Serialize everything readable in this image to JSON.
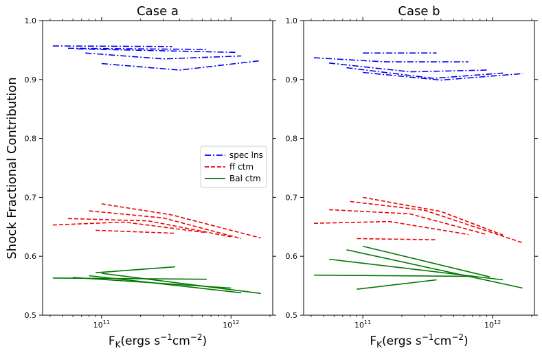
{
  "chart_data": {
    "type": "line",
    "ylabel": "Shock Fractional Contribution",
    "ylim": [
      0.5,
      1.0
    ],
    "xscale": "log",
    "xlim": [
      35000000000.0,
      2100000000000.0
    ],
    "y_ticks": [
      "0.5",
      "0.6",
      "0.7",
      "0.8",
      "0.9",
      "1.0"
    ],
    "x_ticks": [
      {
        "base": "10",
        "exp": "11"
      },
      {
        "base": "10",
        "exp": "12"
      }
    ],
    "xlabel": {
      "main": "F",
      "sub": "K",
      "text1": "(ergs s",
      "sup1": "−1",
      "text2": "cm",
      "sup2": "−2",
      "text3": ")"
    },
    "legend": {
      "placement": "center-right of Case a",
      "entries": [
        {
          "label": "spec lns",
          "style": "dashdot",
          "color": "#0000ee"
        },
        {
          "label": "ff ctm",
          "style": "dashed",
          "color": "#ee0000"
        },
        {
          "label": "Bal ctm",
          "style": "solid",
          "color": "#007700"
        }
      ]
    },
    "panels": [
      {
        "title": "Case a",
        "series": [
          {
            "group": "spec lns",
            "x": [
              42000000000.0,
              350000000000.0
            ],
            "y": [
              0.957,
              0.956
            ]
          },
          {
            "group": "spec lns",
            "x": [
              55000000000.0,
              650000000000.0
            ],
            "y": [
              0.953,
              0.951
            ]
          },
          {
            "group": "spec lns",
            "x": [
              65000000000.0,
              1100000000000.0
            ],
            "y": [
              0.952,
              0.946
            ]
          },
          {
            "group": "spec lns",
            "x": [
              75000000000.0,
              300000000000.0,
              1200000000000.0
            ],
            "y": [
              0.945,
              0.935,
              0.94
            ]
          },
          {
            "group": "spec lns",
            "x": [
              100000000000.0,
              400000000000.0,
              1700000000000.0
            ],
            "y": [
              0.927,
              0.916,
              0.932
            ]
          },
          {
            "group": "ff ctm",
            "x": [
              42000000000.0,
              150000000000.0,
              650000000000.0
            ],
            "y": [
              0.653,
              0.658,
              0.64
            ]
          },
          {
            "group": "ff ctm",
            "x": [
              55000000000.0,
              230000000000.0,
              1000000000000.0
            ],
            "y": [
              0.664,
              0.66,
              0.633
            ]
          },
          {
            "group": "ff ctm",
            "x": [
              80000000000.0,
              300000000000.0,
              1200000000000.0
            ],
            "y": [
              0.677,
              0.665,
              0.63
            ]
          },
          {
            "group": "ff ctm",
            "x": [
              100000000000.0,
              350000000000.0,
              1700000000000.0
            ],
            "y": [
              0.689,
              0.67,
              0.631
            ]
          },
          {
            "group": "ff ctm",
            "x": [
              90000000000.0,
              370000000000.0
            ],
            "y": [
              0.644,
              0.639
            ]
          },
          {
            "group": "Bal ctm",
            "x": [
              42000000000.0,
              650000000000.0
            ],
            "y": [
              0.563,
              0.561
            ]
          },
          {
            "group": "Bal ctm",
            "x": [
              60000000000.0,
              1000000000000.0
            ],
            "y": [
              0.564,
              0.546
            ]
          },
          {
            "group": "Bal ctm",
            "x": [
              80000000000.0,
              1200000000000.0
            ],
            "y": [
              0.567,
              0.538
            ]
          },
          {
            "group": "Bal ctm",
            "x": [
              90000000000.0,
              370000000000.0
            ],
            "y": [
              0.572,
              0.582
            ]
          },
          {
            "group": "Bal ctm",
            "x": [
              100000000000.0,
              1700000000000.0
            ],
            "y": [
              0.571,
              0.537
            ]
          }
        ]
      },
      {
        "title": "Case b",
        "series": [
          {
            "group": "spec lns",
            "x": [
              100000000000.0,
              370000000000.0
            ],
            "y": [
              0.945,
              0.945
            ]
          },
          {
            "group": "spec lns",
            "x": [
              42000000000.0,
              150000000000.0,
              650000000000.0
            ],
            "y": [
              0.937,
              0.93,
              0.93
            ]
          },
          {
            "group": "spec lns",
            "x": [
              55000000000.0,
              230000000000.0,
              900000000000.0
            ],
            "y": [
              0.928,
              0.913,
              0.916
            ]
          },
          {
            "group": "spec lns",
            "x": [
              75000000000.0,
              350000000000.0,
              1200000000000.0
            ],
            "y": [
              0.92,
              0.902,
              0.911
            ]
          },
          {
            "group": "spec lns",
            "x": [
              100000000000.0,
              400000000000.0,
              1700000000000.0
            ],
            "y": [
              0.912,
              0.899,
              0.91
            ]
          },
          {
            "group": "ff ctm",
            "x": [
              100000000000.0,
              400000000000.0,
              1200000000000.0
            ],
            "y": [
              0.7,
              0.676,
              0.636
            ]
          },
          {
            "group": "ff ctm",
            "x": [
              80000000000.0,
              300000000000.0,
              1700000000000.0
            ],
            "y": [
              0.693,
              0.678,
              0.623
            ]
          },
          {
            "group": "ff ctm",
            "x": [
              55000000000.0,
              230000000000.0,
              900000000000.0
            ],
            "y": [
              0.679,
              0.672,
              0.637
            ]
          },
          {
            "group": "ff ctm",
            "x": [
              42000000000.0,
              160000000000.0,
              650000000000.0
            ],
            "y": [
              0.656,
              0.659,
              0.637
            ]
          },
          {
            "group": "ff ctm",
            "x": [
              90000000000.0,
              370000000000.0
            ],
            "y": [
              0.63,
              0.628
            ]
          },
          {
            "group": "Bal ctm",
            "x": [
              42000000000.0,
              650000000000.0
            ],
            "y": [
              0.568,
              0.566
            ]
          },
          {
            "group": "Bal ctm",
            "x": [
              55000000000.0,
              1200000000000.0
            ],
            "y": [
              0.595,
              0.56
            ]
          },
          {
            "group": "Bal ctm",
            "x": [
              75000000000.0,
              1700000000000.0
            ],
            "y": [
              0.611,
              0.546
            ]
          },
          {
            "group": "Bal ctm",
            "x": [
              100000000000.0,
              950000000000.0
            ],
            "y": [
              0.617,
              0.565
            ]
          },
          {
            "group": "Bal ctm",
            "x": [
              90000000000.0,
              370000000000.0
            ],
            "y": [
              0.544,
              0.56
            ]
          }
        ]
      }
    ]
  }
}
